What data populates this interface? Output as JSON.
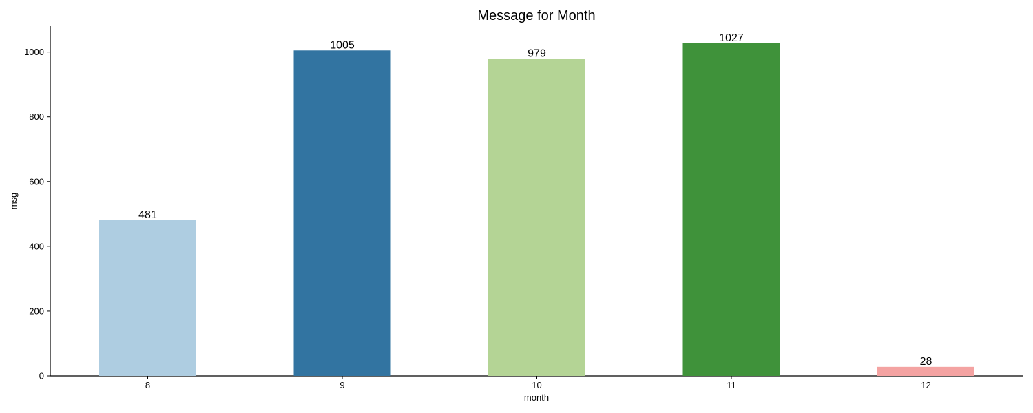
{
  "chart_data": {
    "type": "bar",
    "title": "Message for Month",
    "xlabel": "month",
    "ylabel": "msg",
    "categories": [
      "8",
      "9",
      "10",
      "11",
      "12"
    ],
    "values": [
      481,
      1005,
      979,
      1027,
      28
    ],
    "data_labels": [
      "481",
      "1005",
      "979",
      "1027",
      "28"
    ],
    "colors": [
      "#aecde1",
      "#3274a1",
      "#b4d495",
      "#3f923a",
      "#f4a3a2"
    ],
    "yticks": [
      0,
      200,
      400,
      600,
      800,
      1000
    ],
    "ylim": [
      0,
      1080
    ],
    "grid": false,
    "legend": "none"
  }
}
